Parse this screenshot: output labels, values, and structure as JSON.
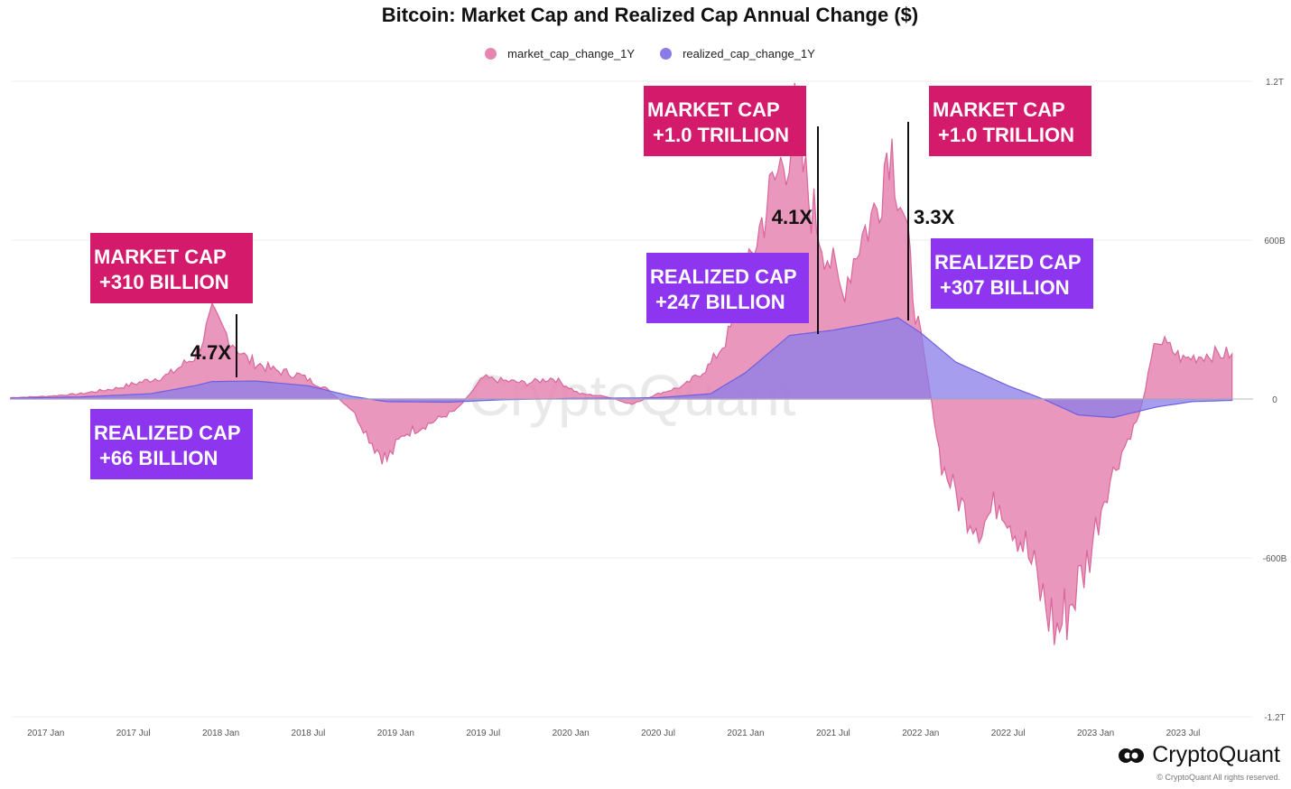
{
  "chart_data": {
    "type": "area",
    "title": "Bitcoin: Market Cap and Realized Cap Annual Change ($)",
    "legend_placement": "top-center",
    "ylim": [
      -1200000000000,
      1200000000000
    ],
    "y_ticks": [
      {
        "value": 1200000000000,
        "label": "1.2T"
      },
      {
        "value": 600000000000,
        "label": "600B"
      },
      {
        "value": 0,
        "label": "0"
      },
      {
        "value": -600000000000,
        "label": "-600B"
      },
      {
        "value": -1200000000000,
        "label": "-1.2T"
      }
    ],
    "x_range": [
      2016.8,
      2023.9
    ],
    "x_ticks": [
      {
        "value": 2017.0,
        "label": "2017 Jan"
      },
      {
        "value": 2017.5,
        "label": "2017 Jul"
      },
      {
        "value": 2018.0,
        "label": "2018 Jan"
      },
      {
        "value": 2018.5,
        "label": "2018 Jul"
      },
      {
        "value": 2019.0,
        "label": "2019 Jan"
      },
      {
        "value": 2019.5,
        "label": "2019 Jul"
      },
      {
        "value": 2020.0,
        "label": "2020 Jan"
      },
      {
        "value": 2020.5,
        "label": "2020 Jul"
      },
      {
        "value": 2021.0,
        "label": "2021 Jan"
      },
      {
        "value": 2021.5,
        "label": "2021 Jul"
      },
      {
        "value": 2022.0,
        "label": "2022 Jan"
      },
      {
        "value": 2022.5,
        "label": "2022 Jul"
      },
      {
        "value": 2023.0,
        "label": "2023 Jan"
      },
      {
        "value": 2023.5,
        "label": "2023 Jul"
      }
    ],
    "grid": true,
    "series": [
      {
        "name": "market_cap_change_1Y",
        "color": "#e585b0",
        "points": [
          [
            2016.8,
            5000000000
          ],
          [
            2017.0,
            10000000000
          ],
          [
            2017.2,
            20000000000
          ],
          [
            2017.4,
            40000000000
          ],
          [
            2017.55,
            65000000000
          ],
          [
            2017.7,
            90000000000
          ],
          [
            2017.85,
            160000000000
          ],
          [
            2017.95,
            310000000000
          ],
          [
            2018.05,
            230000000000
          ],
          [
            2018.15,
            150000000000
          ],
          [
            2018.3,
            110000000000
          ],
          [
            2018.45,
            90000000000
          ],
          [
            2018.6,
            40000000000
          ],
          [
            2018.75,
            -40000000000
          ],
          [
            2018.88,
            -180000000000
          ],
          [
            2018.95,
            -230000000000
          ],
          [
            2019.05,
            -130000000000
          ],
          [
            2019.2,
            -90000000000
          ],
          [
            2019.35,
            -40000000000
          ],
          [
            2019.5,
            80000000000
          ],
          [
            2019.6,
            70000000000
          ],
          [
            2019.75,
            60000000000
          ],
          [
            2019.9,
            80000000000
          ],
          [
            2020.05,
            20000000000
          ],
          [
            2020.2,
            10000000000
          ],
          [
            2020.35,
            -20000000000
          ],
          [
            2020.5,
            20000000000
          ],
          [
            2020.65,
            50000000000
          ],
          [
            2020.8,
            130000000000
          ],
          [
            2020.9,
            240000000000
          ],
          [
            2020.97,
            350000000000
          ],
          [
            2021.05,
            580000000000
          ],
          [
            2021.12,
            730000000000
          ],
          [
            2021.2,
            880000000000
          ],
          [
            2021.28,
            1040000000000
          ],
          [
            2021.36,
            760000000000
          ],
          [
            2021.45,
            580000000000
          ],
          [
            2021.55,
            400000000000
          ],
          [
            2021.65,
            600000000000
          ],
          [
            2021.75,
            720000000000
          ],
          [
            2021.82,
            1000000000000
          ],
          [
            2021.9,
            720000000000
          ],
          [
            2021.97,
            340000000000
          ],
          [
            2022.05,
            40000000000
          ],
          [
            2022.12,
            -250000000000
          ],
          [
            2022.25,
            -420000000000
          ],
          [
            2022.35,
            -480000000000
          ],
          [
            2022.45,
            -380000000000
          ],
          [
            2022.6,
            -560000000000
          ],
          [
            2022.7,
            -760000000000
          ],
          [
            2022.78,
            -880000000000
          ],
          [
            2022.85,
            -780000000000
          ],
          [
            2022.95,
            -620000000000
          ],
          [
            2023.05,
            -360000000000
          ],
          [
            2023.15,
            -200000000000
          ],
          [
            2023.25,
            -60000000000
          ],
          [
            2023.35,
            230000000000
          ],
          [
            2023.5,
            150000000000
          ],
          [
            2023.65,
            170000000000
          ],
          [
            2023.78,
            170000000000
          ]
        ]
      },
      {
        "name": "realized_cap_change_1Y",
        "color": "#8a7ce8",
        "points": [
          [
            2016.8,
            3000000000
          ],
          [
            2017.2,
            8000000000
          ],
          [
            2017.6,
            20000000000
          ],
          [
            2017.85,
            50000000000
          ],
          [
            2017.95,
            66000000000
          ],
          [
            2018.2,
            68000000000
          ],
          [
            2018.5,
            50000000000
          ],
          [
            2018.75,
            10000000000
          ],
          [
            2018.95,
            -10000000000
          ],
          [
            2019.3,
            -12000000000
          ],
          [
            2019.6,
            -3000000000
          ],
          [
            2020.0,
            2000000000
          ],
          [
            2020.5,
            5000000000
          ],
          [
            2020.8,
            20000000000
          ],
          [
            2021.0,
            100000000000
          ],
          [
            2021.25,
            240000000000
          ],
          [
            2021.5,
            260000000000
          ],
          [
            2021.75,
            290000000000
          ],
          [
            2021.87,
            307000000000
          ],
          [
            2022.0,
            250000000000
          ],
          [
            2022.2,
            140000000000
          ],
          [
            2022.5,
            50000000000
          ],
          [
            2022.7,
            0
          ],
          [
            2022.9,
            -60000000000
          ],
          [
            2023.1,
            -70000000000
          ],
          [
            2023.35,
            -30000000000
          ],
          [
            2023.55,
            -10000000000
          ],
          [
            2023.78,
            -5000000000
          ]
        ]
      }
    ],
    "annotations": [
      {
        "id": "mc-2017",
        "lines": [
          "MARKET CAP",
          "+310 BILLION"
        ],
        "color": "#d41b6b"
      },
      {
        "id": "rc-2017",
        "lines": [
          "REALIZED CAP",
          "+66 BILLION"
        ],
        "color": "#8e35f0"
      },
      {
        "id": "mc-2021a",
        "lines": [
          "MARKET CAP",
          "+1.0 TRILLION"
        ],
        "color": "#d41b6b"
      },
      {
        "id": "rc-2021a",
        "lines": [
          "REALIZED CAP",
          "+247 BILLION"
        ],
        "color": "#8e35f0"
      },
      {
        "id": "mc-2021b",
        "lines": [
          "MARKET CAP",
          "+1.0 TRILLION"
        ],
        "color": "#d41b6b"
      },
      {
        "id": "rc-2021b",
        "lines": [
          "REALIZED CAP",
          "+307 BILLION"
        ],
        "color": "#8e35f0"
      }
    ],
    "multipliers": [
      {
        "label": "4.7X",
        "x": 2017.95
      },
      {
        "label": "4.1X",
        "x": 2021.28
      },
      {
        "label": "3.3X",
        "x": 2021.82
      }
    ]
  },
  "watermark": "CryptoQuant",
  "brand": {
    "name": "CryptoQuant",
    "copyright": "© CryptoQuant All rights reserved."
  }
}
